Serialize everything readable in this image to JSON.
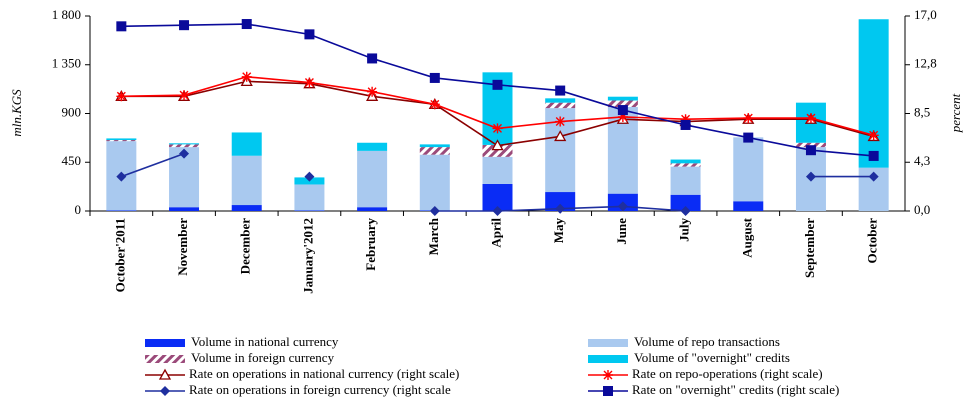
{
  "chart_data": {
    "type": "bar_line",
    "y_label": "mln.KGS",
    "y2_label": "percent",
    "categories": [
      "October'2011",
      "November",
      "December",
      "January'2012",
      "February",
      "March",
      "April",
      "May",
      "June",
      "July",
      "August",
      "September",
      "October"
    ],
    "ylim": [
      0,
      1800
    ],
    "yticks": [
      0,
      {
        "value": 450,
        "label": "450"
      },
      {
        "value": 900,
        "label": "900"
      },
      {
        "value": 1350,
        "label": "1 350"
      },
      {
        "value": 1800,
        "label": "1 800"
      }
    ],
    "y2lim": [
      0,
      17
    ],
    "y2ticks": [
      {
        "value": 0,
        "label": "0,0"
      },
      {
        "value": 4.25,
        "label": "4,3"
      },
      {
        "value": 8.5,
        "label": "8,5"
      },
      {
        "value": 12.75,
        "label": "12,8"
      },
      {
        "value": 17,
        "label": "17,0"
      }
    ],
    "series": [
      {
        "name": "Volume in national currency",
        "kind": "bar",
        "color": "#0a2cf5",
        "values": [
          5,
          35,
          55,
          5,
          35,
          5,
          250,
          175,
          160,
          150,
          90,
          0,
          0
        ]
      },
      {
        "name": "Volume of repo transactions",
        "kind": "bar",
        "color": "#a9c9ef",
        "values": [
          640,
          555,
          455,
          240,
          520,
          515,
          250,
          775,
          800,
          260,
          590,
          590,
          400
        ]
      },
      {
        "name": "Volume in foreign currency",
        "kind": "bar",
        "pattern": "hatch",
        "color": "#9b4a7a",
        "values": [
          10,
          25,
          0,
          0,
          0,
          70,
          110,
          50,
          60,
          30,
          0,
          40,
          0
        ]
      },
      {
        "name": "Volume of \"overnight\" credits",
        "kind": "bar",
        "color": "#00c8f0",
        "values": [
          15,
          10,
          215,
          65,
          75,
          25,
          670,
          40,
          35,
          35,
          0,
          370,
          1370
        ]
      },
      {
        "name": "Rate on operations in national currency (right scale)",
        "kind": "line",
        "axis": "y2",
        "marker": "triangle",
        "color": "#8b0000",
        "values": [
          10.0,
          10.0,
          11.3,
          11.1,
          10.0,
          9.3,
          5.7,
          6.5,
          8.0,
          7.8,
          8.0,
          8.0,
          6.5
        ]
      },
      {
        "name": "Rate on repo-operations (right scale)",
        "kind": "line",
        "axis": "y2",
        "marker": "star",
        "color": "#ff0000",
        "values": [
          10.0,
          10.1,
          11.7,
          11.2,
          10.4,
          9.3,
          7.2,
          7.8,
          8.2,
          8.0,
          8.1,
          8.1,
          6.6
        ]
      },
      {
        "name": "Rate on operations in foreign currency (right scale",
        "kind": "line",
        "axis": "y2",
        "marker": "diamond",
        "color": "#1f2f9f",
        "values": [
          3.0,
          5.0,
          null,
          3.0,
          null,
          0.0,
          0.0,
          0.2,
          0.4,
          0.0,
          null,
          3.0,
          3.0
        ]
      },
      {
        "name": "Rate on \"overnight\" credits (right scale)",
        "kind": "line",
        "axis": "y2",
        "marker": "square",
        "color": "#0a0a9a",
        "values": [
          16.1,
          16.2,
          16.3,
          15.4,
          13.3,
          11.6,
          11.0,
          10.5,
          8.8,
          7.5,
          6.4,
          5.3,
          4.8
        ]
      }
    ]
  }
}
